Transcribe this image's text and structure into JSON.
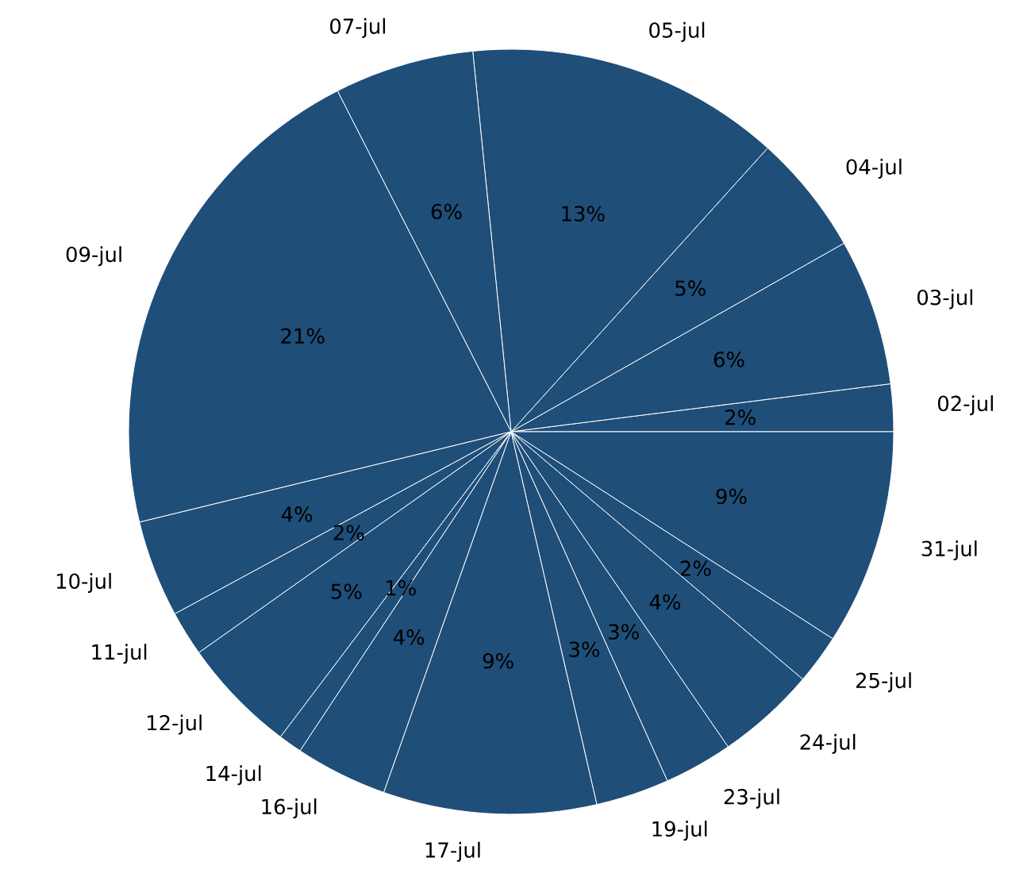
{
  "chart_data": {
    "type": "pie",
    "categories": [
      "02-jul",
      "03-jul",
      "04-jul",
      "05-jul",
      "07-jul",
      "09-jul",
      "10-jul",
      "11-jul",
      "12-jul",
      "14-jul",
      "16-jul",
      "17-jul",
      "19-jul",
      "23-jul",
      "24-jul",
      "25-jul",
      "31-jul"
    ],
    "values": [
      2,
      6.2,
      5.1,
      13.3,
      5.9,
      21.3,
      4.1,
      1.9,
      4.9,
      1,
      3.9,
      9,
      3.1,
      2.9,
      4.2,
      2.1,
      9.1
    ],
    "value_labels": [
      "2%",
      "6%",
      "5%",
      "13%",
      "6%",
      "21%",
      "4%",
      "2%",
      "5%",
      "1%",
      "4%",
      "9%",
      "3%",
      "3%",
      "4%",
      "2%",
      "9%"
    ],
    "colors": [
      "#1f4e79",
      "#1f4e79",
      "#1f4e79",
      "#1f4e79",
      "#1f4e79",
      "#1f4e79",
      "#1f4e79",
      "#1f4e79",
      "#1f4e79",
      "#1f4e79",
      "#1f4e79",
      "#1f4e79",
      "#1f4e79",
      "#1f4e79",
      "#1f4e79",
      "#1f4e79",
      "#1f4e79"
    ]
  }
}
